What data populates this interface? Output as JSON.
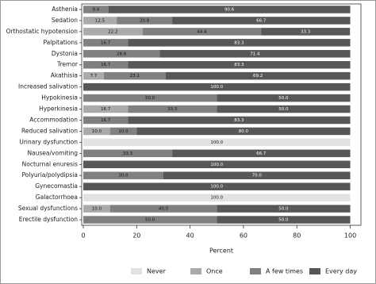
{
  "chart_data": {
    "type": "stacked_barh",
    "x_label": "Percent",
    "categories": [
      "Asthenia",
      "Sedation",
      "Orthostatic hypotension",
      "Palpitations",
      "Dystonia",
      "Tremor",
      "Akathisia",
      "Increased salivation",
      "Hypokinesia",
      "Hyperkinesia",
      "Accommodation",
      "Reduced salivation",
      "Urinary dysfunction",
      "Nausea/vomiting",
      "Nocturnal enuresis",
      "Polyuria/polydipsia",
      "Gynecomastia",
      "Galactorrhoea",
      "Sexual dysfunctions",
      "Erectile dysfunction"
    ],
    "series": [
      {
        "name": "Never",
        "color": "#e2e2e2",
        "values": [
          null,
          null,
          null,
          null,
          null,
          null,
          null,
          null,
          null,
          null,
          null,
          null,
          100,
          null,
          null,
          null,
          null,
          100,
          null,
          null
        ],
        "value_labels": [
          null,
          null,
          null,
          null,
          null,
          null,
          null,
          null,
          null,
          null,
          null,
          null,
          "100.0",
          null,
          null,
          null,
          null,
          "100.0",
          null,
          null
        ]
      },
      {
        "name": "Once",
        "color": "#aaaaaa",
        "values": [
          null,
          12.5,
          22.2,
          null,
          null,
          null,
          7.7,
          null,
          null,
          16.7,
          null,
          10,
          null,
          null,
          null,
          null,
          null,
          null,
          10,
          null
        ],
        "value_labels": [
          null,
          "12.5",
          "22.2",
          null,
          null,
          null,
          "7.7",
          null,
          null,
          "16.7",
          null,
          "10.0",
          null,
          null,
          null,
          null,
          null,
          null,
          "10.0",
          null
        ]
      },
      {
        "name": "A few times",
        "color": "#808080",
        "values": [
          9.4,
          20.8,
          44.4,
          16.7,
          28.6,
          16.7,
          23.1,
          null,
          50,
          33.3,
          16.7,
          10,
          null,
          33.3,
          null,
          30,
          null,
          null,
          40,
          50
        ],
        "value_labels": [
          "9.4",
          "20.8",
          "44.4",
          "16.7",
          "28.6",
          "16.7",
          "23.1",
          null,
          "50.0",
          "33.3",
          "16.7",
          "10.0",
          null,
          "33.3",
          null,
          "30.0",
          null,
          null,
          "40.0",
          "50.0"
        ]
      },
      {
        "name": "Every day",
        "color": "#575757",
        "values": [
          90.6,
          66.7,
          33.3,
          83.3,
          71.4,
          83.3,
          69.2,
          100,
          50,
          50,
          83.3,
          80,
          null,
          66.7,
          100,
          70,
          100,
          null,
          50,
          50
        ],
        "value_labels": [
          "90.6",
          "66.7",
          "33.3",
          "83.3",
          "71.4",
          "83.3",
          "69.2",
          "100.0",
          "50.0",
          "50.0",
          "83.3",
          "80.0",
          null,
          "66.7",
          "100.0",
          "70.0",
          "100.0",
          null,
          "50.0",
          "50.0"
        ]
      }
    ],
    "xlim": [
      -0.6,
      104
    ],
    "xticks": [
      0,
      20,
      40,
      60,
      80,
      100
    ],
    "legend": "bottom"
  }
}
